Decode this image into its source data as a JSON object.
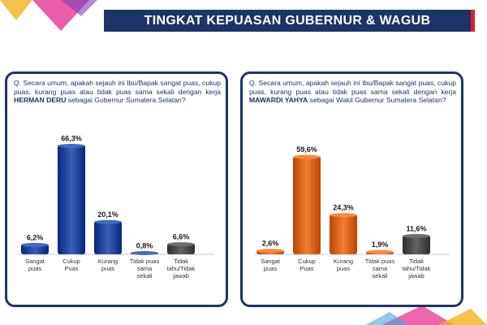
{
  "header": {
    "title": "TINGKAT KEPUASAN GUBERNUR & WAGUB"
  },
  "colors": {
    "header_bg": "#1c3466",
    "header_accent": "#e11d2a",
    "panel_border": "#1c3466",
    "left_bar": "#23459c",
    "right_bar": "#d9641a",
    "neutral_bar": "#4b4b4b"
  },
  "panels": [
    {
      "question_pre": "Q. Secara umum, apakah sejauh ini Ibu/Bapak sangat puas, cukup puas, kurang puas atau tidak puas sama sekali dengan kerja ",
      "question_name": "HERMAN DERU",
      "question_post": " sebagai Gubernur Sumatera Selatan?"
    },
    {
      "question_pre": "Q. Secara umum, apakah sejauh ini Ibu/Bapak sangat puas, cukup puas, kurang puas atau tidak puas sama sekali dengan kerja ",
      "question_name": "MAWARDI YAHYA",
      "question_post": " sebagai Wakil Gubernur Sumatera Selatan?"
    }
  ],
  "chart_data": [
    {
      "type": "bar",
      "categories": [
        "Sangat puas",
        "Cukup Puas",
        "Kurang puas",
        "Tidak puas sama sekali",
        "Tidak tahu/Tidak jawab"
      ],
      "category_lines": [
        [
          "Sangat",
          "puas"
        ],
        [
          "Cukup",
          "Puas"
        ],
        [
          "Kurang",
          "puas"
        ],
        [
          "Tidak puas",
          "sama",
          "sekali"
        ],
        [
          "Tidak",
          "tahu/Tidak",
          "jawab"
        ]
      ],
      "values": [
        6.2,
        66.3,
        20.1,
        0.8,
        6.6
      ],
      "value_labels": [
        "6,2%",
        "66,3%",
        "20,1%",
        "0,8%",
        "6,6%"
      ],
      "bar_colors": [
        "#23459c",
        "#23459c",
        "#23459c",
        "#23459c",
        "#4b4b4b"
      ],
      "ylim": [
        0,
        70
      ],
      "grid": false,
      "legend": "none"
    },
    {
      "type": "bar",
      "categories": [
        "Sangat puas",
        "Cukup Puas",
        "Kurang puas",
        "Tidak puas sama sekali",
        "Tidak tahu/Tidak jawab"
      ],
      "category_lines": [
        [
          "Sangat",
          "puas"
        ],
        [
          "Cukup",
          "Puas"
        ],
        [
          "Kurang",
          "puas"
        ],
        [
          "Tidak puas",
          "sama",
          "sekali"
        ],
        [
          "Tidak",
          "tahu/Tidak",
          "jawab"
        ]
      ],
      "values": [
        2.6,
        59.6,
        24.3,
        1.9,
        11.6
      ],
      "value_labels": [
        "2,6%",
        "59,6%",
        "24,3%",
        "1,9%",
        "11,6%"
      ],
      "bar_colors": [
        "#d9641a",
        "#d9641a",
        "#d9641a",
        "#d9641a",
        "#4b4b4b"
      ],
      "ylim": [
        0,
        70
      ],
      "grid": false,
      "legend": "none"
    }
  ]
}
